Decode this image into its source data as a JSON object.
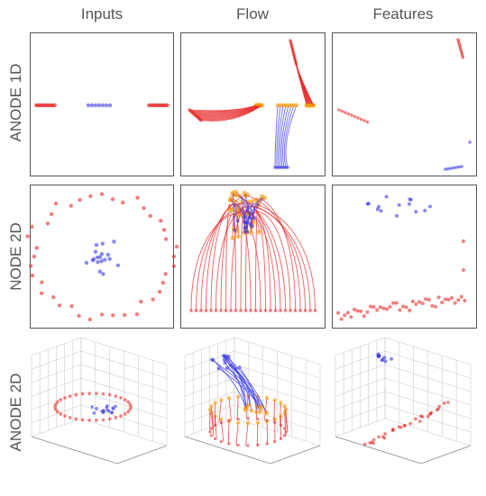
{
  "columns": [
    "Inputs",
    "Flow",
    "Features"
  ],
  "rows": [
    "ANODE 1D",
    "NODE 2D",
    "ANODE 2D"
  ],
  "colors": {
    "class_a": "#e82a2a",
    "class_b": "#3a3ae8",
    "flow_end": "#ff9900",
    "frame": "#555555"
  }
}
